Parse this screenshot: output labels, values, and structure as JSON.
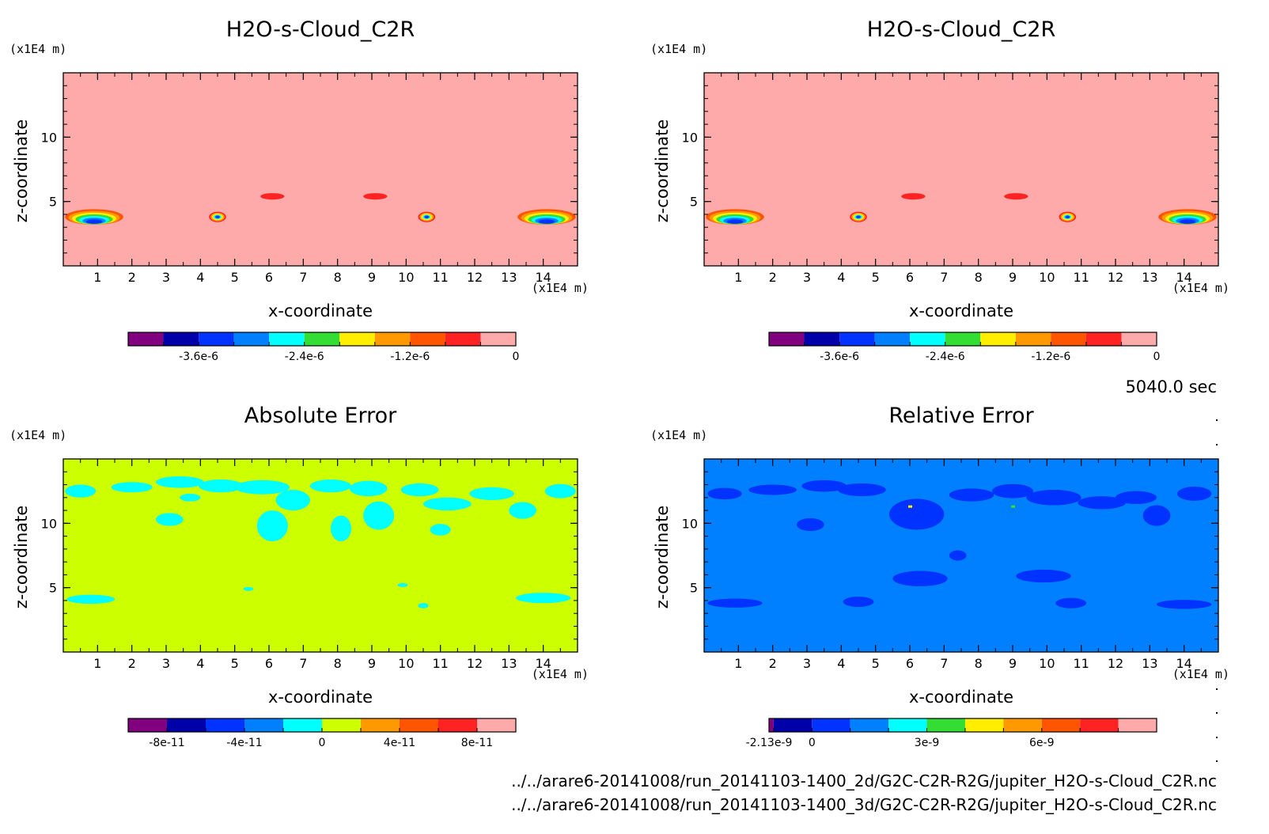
{
  "figure": {
    "time_label": "5040.0 sec",
    "file_paths": [
      "../../arare6-20141008/run_20141103-1400_2d/G2C-C2R-R2G/jupiter_H2O-s-Cloud_C2R.nc",
      "../../arare6-20141008/run_20141103-1400_3d/G2C-C2R-R2G/jupiter_H2O-s-Cloud_C2R.nc"
    ]
  },
  "chart_data": [
    {
      "type": "heatmap",
      "title": "H2O-s-Cloud_C2R",
      "xlabel": "x-coordinate",
      "ylabel": "z-coordinate",
      "x_unit": "(x1E4 m)",
      "y_unit": "(x1E4 m)",
      "xlim": [
        0,
        15
      ],
      "ylim": [
        0,
        15
      ],
      "x_ticks": [
        1,
        2,
        3,
        4,
        5,
        6,
        7,
        8,
        9,
        10,
        11,
        12,
        13,
        14
      ],
      "y_ticks": [
        5,
        10
      ],
      "x_tick_labels": [
        "1",
        "2",
        "3",
        "4",
        "5",
        "6",
        "7",
        "8",
        "9",
        "10",
        "11",
        "12",
        "13",
        "14"
      ],
      "y_tick_labels": [
        "5",
        "10"
      ],
      "background_color": "#ffaaaa",
      "features": [
        {
          "kind": "band",
          "x": 0.9,
          "z": 3.8,
          "w": 1.7,
          "h": 1.2
        },
        {
          "kind": "band",
          "x": 14.1,
          "z": 3.8,
          "w": 1.7,
          "h": 1.2
        },
        {
          "kind": "blob",
          "x": 4.5,
          "z": 3.8,
          "w": 0.5,
          "h": 0.8
        },
        {
          "kind": "blob",
          "x": 10.6,
          "z": 3.8,
          "w": 0.5,
          "h": 0.8
        },
        {
          "kind": "ellipse",
          "x": 6.1,
          "z": 5.4,
          "w": 0.7,
          "h": 0.5
        },
        {
          "kind": "ellipse",
          "x": 9.1,
          "z": 5.4,
          "w": 0.7,
          "h": 0.5
        }
      ],
      "colorbar": {
        "colors": [
          "#800080",
          "#0000aa",
          "#0033ff",
          "#0080ff",
          "#00ffff",
          "#33dd33",
          "#ffee00",
          "#ff9900",
          "#ff5500",
          "#ff2222",
          "#ffaaaa"
        ],
        "tick_labels": [
          "-3.6e-6",
          "-2.4e-6",
          "-1.2e-6",
          "0"
        ],
        "tick_positions": [
          2,
          5,
          8,
          11
        ]
      }
    },
    {
      "type": "heatmap",
      "title": "H2O-s-Cloud_C2R",
      "xlabel": "x-coordinate",
      "ylabel": "z-coordinate",
      "x_unit": "(x1E4 m)",
      "y_unit": "(x1E4 m)",
      "xlim": [
        0,
        15
      ],
      "ylim": [
        0,
        15
      ],
      "x_ticks": [
        1,
        2,
        3,
        4,
        5,
        6,
        7,
        8,
        9,
        10,
        11,
        12,
        13,
        14
      ],
      "y_ticks": [
        5,
        10
      ],
      "x_tick_labels": [
        "1",
        "2",
        "3",
        "4",
        "5",
        "6",
        "7",
        "8",
        "9",
        "10",
        "11",
        "12",
        "13",
        "14"
      ],
      "y_tick_labels": [
        "5",
        "10"
      ],
      "background_color": "#ffaaaa",
      "features": [
        {
          "kind": "band",
          "x": 0.9,
          "z": 3.8,
          "w": 1.7,
          "h": 1.2
        },
        {
          "kind": "band",
          "x": 14.1,
          "z": 3.8,
          "w": 1.7,
          "h": 1.2
        },
        {
          "kind": "blob",
          "x": 4.5,
          "z": 3.8,
          "w": 0.5,
          "h": 0.8
        },
        {
          "kind": "blob",
          "x": 10.6,
          "z": 3.8,
          "w": 0.5,
          "h": 0.8
        },
        {
          "kind": "ellipse",
          "x": 6.1,
          "z": 5.4,
          "w": 0.7,
          "h": 0.5
        },
        {
          "kind": "ellipse",
          "x": 9.1,
          "z": 5.4,
          "w": 0.7,
          "h": 0.5
        }
      ],
      "colorbar": {
        "colors": [
          "#800080",
          "#0000aa",
          "#0033ff",
          "#0080ff",
          "#00ffff",
          "#33dd33",
          "#ffee00",
          "#ff9900",
          "#ff5500",
          "#ff2222",
          "#ffaaaa"
        ],
        "tick_labels": [
          "-3.6e-6",
          "-2.4e-6",
          "-1.2e-6",
          "0"
        ],
        "tick_positions": [
          2,
          5,
          8,
          11
        ]
      }
    },
    {
      "type": "heatmap",
      "title": "Absolute Error",
      "xlabel": "x-coordinate",
      "ylabel": "z-coordinate",
      "x_unit": "(x1E4 m)",
      "y_unit": "(x1E4 m)",
      "xlim": [
        0,
        15
      ],
      "ylim": [
        0,
        15
      ],
      "x_ticks": [
        1,
        2,
        3,
        4,
        5,
        6,
        7,
        8,
        9,
        10,
        11,
        12,
        13,
        14
      ],
      "y_ticks": [
        5,
        10
      ],
      "x_tick_labels": [
        "1",
        "2",
        "3",
        "4",
        "5",
        "6",
        "7",
        "8",
        "9",
        "10",
        "11",
        "12",
        "13",
        "14"
      ],
      "y_tick_labels": [
        "5",
        "10"
      ],
      "background_color": "#ccff00",
      "patch_color": "#00ffff",
      "patches": [
        [
          0.5,
          12.5,
          0.9,
          1.0
        ],
        [
          2.0,
          12.8,
          1.2,
          0.8
        ],
        [
          3.4,
          13.2,
          1.4,
          0.9
        ],
        [
          4.6,
          12.9,
          1.3,
          1.0
        ],
        [
          5.8,
          12.8,
          1.6,
          1.1
        ],
        [
          6.7,
          11.8,
          1.0,
          1.6
        ],
        [
          6.1,
          9.8,
          0.9,
          2.4
        ],
        [
          7.8,
          12.9,
          1.2,
          1.0
        ],
        [
          8.9,
          12.7,
          1.1,
          1.2
        ],
        [
          9.2,
          10.6,
          0.9,
          2.2
        ],
        [
          8.1,
          9.6,
          0.6,
          2.0
        ],
        [
          10.4,
          12.6,
          1.1,
          1.0
        ],
        [
          11.2,
          11.5,
          1.4,
          1.0
        ],
        [
          12.5,
          12.3,
          1.3,
          1.0
        ],
        [
          13.4,
          11.0,
          0.8,
          1.3
        ],
        [
          14.5,
          12.5,
          0.9,
          1.1
        ],
        [
          3.1,
          10.3,
          0.8,
          1.0
        ],
        [
          11.0,
          9.5,
          0.6,
          0.9
        ],
        [
          0.8,
          4.1,
          1.4,
          0.7
        ],
        [
          14.0,
          4.2,
          1.6,
          0.8
        ],
        [
          10.5,
          3.6,
          0.3,
          0.4
        ],
        [
          5.4,
          4.9,
          0.3,
          0.3
        ],
        [
          9.9,
          5.2,
          0.3,
          0.3
        ],
        [
          3.7,
          12.0,
          0.6,
          0.6
        ]
      ],
      "colorbar": {
        "colors": [
          "#800080",
          "#0000aa",
          "#0033ff",
          "#0080ff",
          "#00ffff",
          "#ccff00",
          "#ff9900",
          "#ff5500",
          "#ff2222",
          "#ffaaaa"
        ],
        "tick_labels": [
          "-8e-11",
          "-4e-11",
          "0",
          "4e-11",
          "8e-11"
        ],
        "tick_positions": [
          1,
          3,
          5,
          7,
          9
        ]
      }
    },
    {
      "type": "heatmap",
      "title": "Relative Error",
      "xlabel": "x-coordinate",
      "ylabel": "z-coordinate",
      "x_unit": "(x1E4 m)",
      "y_unit": "(x1E4 m)",
      "xlim": [
        0,
        15
      ],
      "ylim": [
        0,
        15
      ],
      "x_ticks": [
        1,
        2,
        3,
        4,
        5,
        6,
        7,
        8,
        9,
        10,
        11,
        12,
        13,
        14
      ],
      "y_ticks": [
        5,
        10
      ],
      "x_tick_labels": [
        "1",
        "2",
        "3",
        "4",
        "5",
        "6",
        "7",
        "8",
        "9",
        "10",
        "11",
        "12",
        "13",
        "14"
      ],
      "y_tick_labels": [
        "5",
        "10"
      ],
      "background_color": "#0080ff",
      "patch_color": "#0033ff",
      "patches": [
        [
          0.6,
          12.3,
          1.0,
          0.9
        ],
        [
          2.0,
          12.6,
          1.4,
          0.8
        ],
        [
          3.5,
          12.9,
          1.3,
          0.9
        ],
        [
          4.6,
          12.6,
          1.4,
          1.0
        ],
        [
          6.2,
          10.7,
          1.6,
          2.4
        ],
        [
          7.8,
          12.2,
          1.3,
          1.0
        ],
        [
          9.0,
          12.5,
          1.2,
          1.1
        ],
        [
          10.2,
          12.0,
          1.6,
          1.2
        ],
        [
          11.6,
          11.6,
          1.4,
          1.0
        ],
        [
          12.6,
          12.0,
          1.2,
          1.0
        ],
        [
          14.3,
          12.3,
          1.0,
          1.1
        ],
        [
          13.2,
          10.6,
          0.8,
          1.6
        ],
        [
          6.3,
          5.7,
          1.6,
          1.2
        ],
        [
          9.9,
          5.9,
          1.6,
          1.0
        ],
        [
          0.9,
          3.8,
          1.6,
          0.7
        ],
        [
          14.0,
          3.7,
          1.6,
          0.7
        ],
        [
          4.5,
          3.9,
          0.9,
          0.8
        ],
        [
          10.7,
          3.8,
          0.9,
          0.8
        ],
        [
          3.1,
          9.9,
          0.8,
          1.0
        ],
        [
          7.4,
          7.5,
          0.5,
          0.8
        ]
      ],
      "specks": [
        [
          6.0,
          11.3,
          "#ffee00"
        ],
        [
          9.0,
          11.3,
          "#33dd33"
        ]
      ],
      "colorbar": {
        "colors": [
          "#800080",
          "#0000aa",
          "#0033ff",
          "#0080ff",
          "#00ffff",
          "#33dd33",
          "#ffee00",
          "#ff9900",
          "#ff5500",
          "#ff2222",
          "#ffaaaa"
        ],
        "tick_labels": [
          "-2.13e-9",
          "0",
          "3e-9",
          "6e-9"
        ],
        "tick_positions": [
          0,
          2,
          5,
          8
        ],
        "first_slot_narrow": true
      }
    }
  ]
}
